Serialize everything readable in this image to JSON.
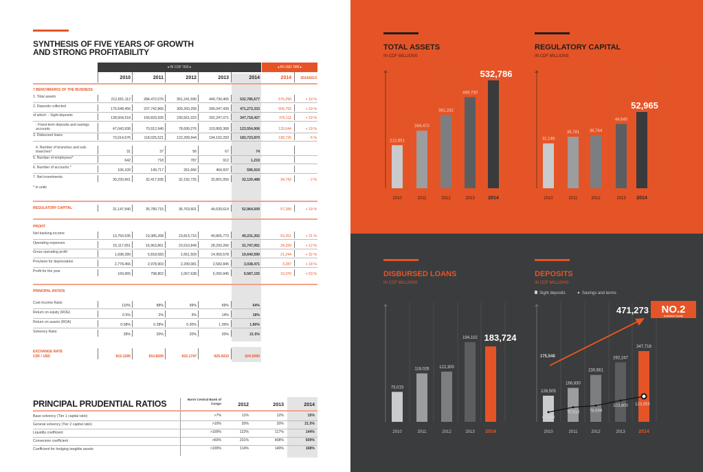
{
  "left": {
    "title_line1": "SYNTHESIS OF FIVE YEARS OF GROWTH",
    "title_line2": "AND STRONG PROFITABILITY",
    "header_cdf": "◂ IN CDF '000 ▸",
    "header_usd": "◂ IN USD '000 ▸",
    "years": [
      "2010",
      "2011",
      "2012",
      "2013",
      "2014"
    ],
    "usd_year": "2014",
    "change_header": "2014/2013",
    "sections": [
      {
        "title": "7 BENCHMARKS OF THE BUSINESS",
        "rows": [
          {
            "label": "1. Total assets",
            "values": [
              "212,651,112",
              "284,472,076",
              "361,241,590",
              "449,730,465",
              "532,785,677"
            ],
            "usd": "576,290",
            "change": "+ 19 %"
          },
          {
            "label": "2. Deposits collected",
            "values": [
              "175,548,456",
              "237,742,866",
              "309,260,299",
              "396,047,439",
              "471,273,333"
            ],
            "usd": "509,755",
            "change": "+ 19 %"
          },
          {
            "label": "of which: - Sight deposits",
            "values": [
              "128,504,518",
              "166,829,926",
              "230,561,023",
              "292,247,071",
              "347,718,427"
            ],
            "usd": "376,111",
            "change": "+ 19 %"
          },
          {
            "label": "- Fixed-term deposits and savings accounts",
            "values": [
              "47,043,938",
              "70,912,940",
              "78,699,276",
              "103,800,368",
              "123,554,906"
            ],
            "usd": "133,644",
            "change": "+ 19 %"
          },
          {
            "label": "3. Disbursed loans",
            "values": [
              "73,014,676",
              "118,025,521",
              "122,299,944",
              "194,102,293",
              "183,723,870"
            ],
            "usd": "198,726",
            "change": "- 5 %"
          },
          {
            "label": "4. Number of branches and sub-branches*",
            "values": [
              "31",
              "37",
              "56",
              "67",
              "74"
            ],
            "usd": "",
            "change": ""
          },
          {
            "label": "5. Number of employees*",
            "values": [
              "642",
              "718",
              "787",
              "912",
              "1,219"
            ],
            "usd": "",
            "change": ""
          },
          {
            "label": "6. Number of accounts *",
            "values": [
              "106,109",
              "149,717",
              "261,666",
              "464,937",
              "596,919"
            ],
            "usd": "",
            "change": ""
          },
          {
            "label": "7. Net investments",
            "values": [
              "30,220,661",
              "32,417,935",
              "32,192,725",
              "32,801,050",
              "32,120,488"
            ],
            "usd": "34,743",
            "change": "- 2 %"
          }
        ],
        "note": "* in units"
      },
      {
        "title": "REGULATORY CAPITAL",
        "rows": [
          {
            "label": "",
            "values": [
              "31,147,940",
              "35,780,715",
              "36,763,601",
              "44,639,614",
              "52,964,509"
            ],
            "usd": "57,289",
            "change": "+ 19 %"
          }
        ]
      },
      {
        "title": "PROFIT",
        "rows": [
          {
            "label": "Net banking income",
            "values": [
              "13,750,535",
              "19,385,268",
              "23,813,716",
              "40,865,773",
              "49,231,302"
            ],
            "usd": "53,251",
            "change": "+ 21 %"
          },
          {
            "label": "Operating expenses",
            "values": [
              "15,117,051",
              "16,963,861",
              "23,510,849",
              "28,293,266",
              "31,747,061"
            ],
            "usd": "34,339",
            "change": "+ 12 %"
          },
          {
            "label": "Gross operating profit",
            "values": [
              "1,698,289",
              "5,818,583",
              "2,651,509",
              "14,950,578",
              "19,640,590"
            ],
            "usd": "21,244",
            "change": "+ 32 %"
          },
          {
            "label": "Provision for depreciation",
            "values": [
              "2,778,466",
              "2,978,903",
              "2,299,081",
              "2,582,845",
              "3,038,471"
            ],
            "usd": "3,287",
            "change": "+ 18 %"
          },
          {
            "label": "Profit for the year",
            "values": [
              "169,965",
              "798,802",
              "1,067,638",
              "6,260,945",
              "9,587,155"
            ],
            "usd": "10,370",
            "change": "+ 53 %"
          }
        ]
      },
      {
        "title": "PRINCIPAL RATIOS",
        "rows": [
          {
            "label": "Cost Income Ratio",
            "values": [
              "110%",
              "88%",
              "99%",
              "69%",
              "64%"
            ],
            "usd": "",
            "change": ""
          },
          {
            "label": "Return on equity (ROE)",
            "values": [
              "0.5%",
              "2%",
              "3%",
              "14%",
              "18%"
            ],
            "usd": "",
            "change": ""
          },
          {
            "label": "Return on assets (ROA)",
            "values": [
              "0.08%",
              "0.28%",
              "0.30%",
              "1.39%",
              "1.80%"
            ],
            "usd": "",
            "change": ""
          },
          {
            "label": "Solvency Ratio",
            "values": [
              "28%",
              "20%",
              "20%",
              "20%",
              "21.5%"
            ],
            "usd": "",
            "change": ""
          }
        ]
      }
    ],
    "exchange": {
      "label1": "EXCHANGE RATE",
      "label2": "CDF / USD",
      "values": [
        "915.1295",
        "910.8209",
        "915.1747",
        "925.5033",
        "924.5090"
      ]
    },
    "prudential": {
      "title": "PRINCIPAL PRUDENTIAL RATIOS",
      "norm_header": "Norm Central Bank of Congo",
      "years": [
        "2012",
        "2013",
        "2014"
      ],
      "rows": [
        {
          "label": "Base solvency (Tier 1 capital ratio)",
          "norm": ">7%",
          "values": [
            "11%",
            "12%",
            "15%"
          ]
        },
        {
          "label": "General solvency (Tier 2 capital ratio)",
          "norm": ">10%",
          "values": [
            "20%",
            "20%",
            "21.5%"
          ]
        },
        {
          "label": "Liquidity coefficient",
          "norm": ">100%",
          "values": [
            "122%",
            "117%",
            "144%"
          ]
        },
        {
          "label": "Conversion coefficient",
          "norm": ">60%",
          "values": [
            "231%",
            "408%",
            "509%"
          ]
        },
        {
          "label": "Coefficient for hedging tangible assets",
          "norm": ">100%",
          "values": [
            "114%",
            "140%",
            "168%"
          ]
        }
      ]
    }
  },
  "colors": {
    "orange": "#e55427",
    "dark": "#3a3c3d",
    "bars": [
      "#c9cbcd",
      "#9b9d9f",
      "#7c7f81",
      "#5b5e61",
      "#383a3c"
    ]
  },
  "chart_data": [
    {
      "type": "bar",
      "title": "TOTAL ASSETS",
      "subtitle": "IN CDF MILLIONS",
      "categories": [
        "2010",
        "2011",
        "2012",
        "2013",
        "2014"
      ],
      "values": [
        212651,
        284472,
        361242,
        449730,
        532786
      ],
      "labels": [
        "212,651",
        "284,472",
        "361,242",
        "449,730",
        "532,786"
      ],
      "highlight_last": "dark"
    },
    {
      "type": "bar",
      "title": "REGULATORY CAPITAL",
      "subtitle": "IN CDF MILLIONS",
      "categories": [
        "2010",
        "2011",
        "2012",
        "2013",
        "2014"
      ],
      "values": [
        31148,
        35781,
        36764,
        44640,
        52965
      ],
      "labels": [
        "31,148",
        "35,781",
        "36,764",
        "44,640",
        "52,965"
      ],
      "highlight_last": "dark"
    },
    {
      "type": "bar",
      "title": "DISBURSED LOANS",
      "subtitle": "IN CDF MILLIONS",
      "categories": [
        "2010",
        "2011",
        "2012",
        "2013",
        "2014"
      ],
      "values": [
        73015,
        118026,
        122300,
        194102,
        183724
      ],
      "labels": [
        "73,015",
        "118,026",
        "122,300",
        "194,102",
        "183,724"
      ],
      "highlight_last": "orange"
    },
    {
      "type": "bar+line",
      "title": "DEPOSITS",
      "subtitle": "IN CDF MILLIONS",
      "categories": [
        "2010",
        "2011",
        "2012",
        "2013",
        "2014"
      ],
      "series": [
        {
          "name": "Sight deposits",
          "values": [
            128505,
            166830,
            230561,
            292247,
            347718
          ],
          "labels": [
            "128,505",
            "166,830",
            "230,561",
            "292,247",
            "347,718"
          ]
        },
        {
          "name": "Savings and terms",
          "values": [
            47044,
            70913,
            78699,
            103800,
            123555
          ],
          "labels": [
            "47,044",
            "70,913",
            "78,699",
            "103,800",
            "123,555"
          ]
        }
      ],
      "arrow_start_label": "175,548",
      "arrow_end_label": "471,273",
      "badge": "NO.2",
      "badge_sub": "IN MARKET SHARE"
    }
  ]
}
